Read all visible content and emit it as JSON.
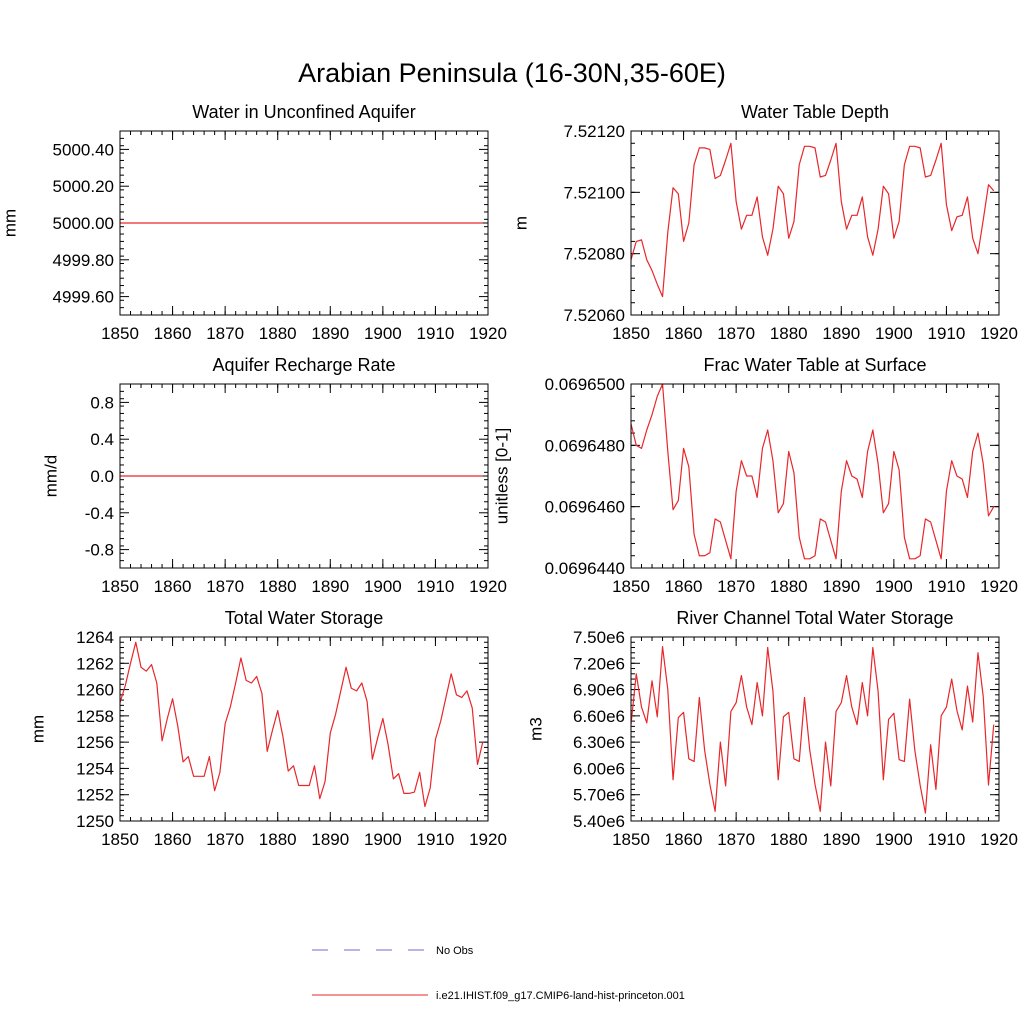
{
  "page_title": "Arabian Peninsula (16-30N,35-60E)",
  "legend": [
    {
      "label": "No Obs",
      "color": "#6b6bd6",
      "style": "dashed"
    },
    {
      "label": "i.e21.IHIST.f09_g17.CMIP6-land-hist-princeton.001",
      "color": "#e8272b",
      "style": "solid"
    }
  ],
  "chart_data": [
    {
      "type": "line",
      "title": "Water in Unconfined Aquifer",
      "ylabel": "mm",
      "xlim": [
        1850,
        1920
      ],
      "ylim": [
        4999.5,
        5000.5
      ],
      "x_ticks": [
        1850,
        1860,
        1870,
        1880,
        1890,
        1900,
        1910,
        1920
      ],
      "x_tick_labels": [
        "1850",
        "1860",
        "1870",
        "1880",
        "1890",
        "1900",
        "1910",
        "1920"
      ],
      "y_ticks": [
        4999.6,
        4999.8,
        5000.0,
        5000.2,
        5000.4
      ],
      "y_tick_labels": [
        "4999.60",
        "4999.80",
        "5000.00",
        "5000.20",
        "5000.40"
      ],
      "x": [
        1850,
        1919
      ],
      "values": [
        5000.0,
        5000.0
      ],
      "color": "#e8272b"
    },
    {
      "type": "line",
      "title": "Water Table Depth",
      "ylabel": "m",
      "xlim": [
        1850,
        1920
      ],
      "ylim": [
        7.5206,
        7.5212
      ],
      "x_ticks": [
        1850,
        1860,
        1870,
        1880,
        1890,
        1900,
        1910,
        1920
      ],
      "x_tick_labels": [
        "1850",
        "1860",
        "1870",
        "1880",
        "1890",
        "1900",
        "1910",
        "1920"
      ],
      "y_ticks": [
        7.5206,
        7.5208,
        7.521,
        7.5212
      ],
      "y_tick_labels": [
        "7.52060",
        "7.52080",
        "7.52100",
        "7.52120"
      ],
      "x_start": 1850,
      "x_step": 1,
      "values": [
        7.52078,
        7.52084,
        7.520845,
        7.52078,
        7.520745,
        7.5207,
        7.52066,
        7.52087,
        7.521015,
        7.520995,
        7.52084,
        7.5209,
        7.52109,
        7.521145,
        7.521145,
        7.52114,
        7.521045,
        7.521055,
        7.521105,
        7.52116,
        7.52097,
        7.52088,
        7.520925,
        7.520925,
        7.520985,
        7.520855,
        7.520795,
        7.52088,
        7.52102,
        7.520995,
        7.52085,
        7.520905,
        7.52109,
        7.52115,
        7.52115,
        7.521145,
        7.52105,
        7.521055,
        7.521105,
        7.52116,
        7.52097,
        7.52088,
        7.520925,
        7.520925,
        7.520985,
        7.520855,
        7.520795,
        7.52088,
        7.52102,
        7.520995,
        7.52085,
        7.520905,
        7.52109,
        7.52115,
        7.52115,
        7.521145,
        7.52105,
        7.521055,
        7.521105,
        7.52116,
        7.52096,
        7.520875,
        7.52092,
        7.520925,
        7.520985,
        7.52085,
        7.5208,
        7.52091,
        7.521025,
        7.521005
      ],
      "color": "#e8272b"
    },
    {
      "type": "line",
      "title": "Aquifer Recharge Rate",
      "ylabel": "mm/d",
      "xlim": [
        1850,
        1920
      ],
      "ylim": [
        -1.0,
        1.0
      ],
      "x_ticks": [
        1850,
        1860,
        1870,
        1880,
        1890,
        1900,
        1910,
        1920
      ],
      "x_tick_labels": [
        "1850",
        "1860",
        "1870",
        "1880",
        "1890",
        "1900",
        "1910",
        "1920"
      ],
      "y_ticks": [
        -0.8,
        -0.4,
        0.0,
        0.4,
        0.8
      ],
      "y_tick_labels": [
        "-0.8",
        "-0.4",
        "0.0",
        "0.4",
        "0.8"
      ],
      "x": [
        1850,
        1919
      ],
      "values": [
        0.0,
        0.0
      ],
      "color": "#e8272b"
    },
    {
      "type": "line",
      "title": "Frac Water Table at Surface",
      "ylabel": "unitless [0-1]",
      "xlim": [
        1850,
        1920
      ],
      "ylim": [
        0.069644,
        0.06965
      ],
      "x_ticks": [
        1850,
        1860,
        1870,
        1880,
        1890,
        1900,
        1910,
        1920
      ],
      "x_tick_labels": [
        "1850",
        "1860",
        "1870",
        "1880",
        "1890",
        "1900",
        "1910",
        "1920"
      ],
      "y_ticks": [
        0.069644,
        0.069646,
        0.069648,
        0.06965
      ],
      "y_tick_labels": [
        "0.0696440",
        "0.0696460",
        "0.0696480",
        "0.0696500"
      ],
      "x_start": 1850,
      "x_step": 1,
      "values": [
        0.0696487,
        0.069648,
        0.0696479,
        0.0696485,
        0.069649,
        0.0696496,
        0.06965,
        0.0696478,
        0.0696459,
        0.0696462,
        0.0696479,
        0.0696473,
        0.0696451,
        0.0696444,
        0.0696444,
        0.0696445,
        0.0696456,
        0.0696455,
        0.0696449,
        0.0696443,
        0.0696465,
        0.0696475,
        0.069647,
        0.069647,
        0.0696463,
        0.0696479,
        0.0696485,
        0.0696475,
        0.0696458,
        0.0696461,
        0.0696478,
        0.0696471,
        0.069645,
        0.0696443,
        0.0696443,
        0.0696444,
        0.0696456,
        0.0696455,
        0.0696449,
        0.0696443,
        0.0696465,
        0.0696475,
        0.069647,
        0.0696469,
        0.0696463,
        0.0696478,
        0.0696485,
        0.0696474,
        0.0696458,
        0.0696461,
        0.0696478,
        0.0696472,
        0.069645,
        0.0696443,
        0.0696443,
        0.0696444,
        0.0696456,
        0.0696455,
        0.0696449,
        0.0696443,
        0.0696465,
        0.0696475,
        0.069647,
        0.0696469,
        0.0696463,
        0.0696478,
        0.0696484,
        0.0696474,
        0.0696457,
        0.069646
      ],
      "color": "#e8272b"
    },
    {
      "type": "line",
      "title": "Total Water Storage",
      "ylabel": "mm",
      "xlim": [
        1850,
        1920
      ],
      "ylim": [
        1250,
        1264
      ],
      "x_ticks": [
        1850,
        1860,
        1870,
        1880,
        1890,
        1900,
        1910,
        1920
      ],
      "x_tick_labels": [
        "1850",
        "1860",
        "1870",
        "1880",
        "1890",
        "1900",
        "1910",
        "1920"
      ],
      "y_ticks": [
        1250,
        1252,
        1254,
        1256,
        1258,
        1260,
        1262,
        1264
      ],
      "y_tick_labels": [
        "1250",
        "1252",
        "1254",
        "1256",
        "1258",
        "1260",
        "1262",
        "1264"
      ],
      "x_start": 1850,
      "x_step": 1,
      "values": [
        1259.0,
        1260.3,
        1262.0,
        1263.6,
        1261.7,
        1261.4,
        1261.9,
        1260.5,
        1256.1,
        1257.8,
        1259.3,
        1257.2,
        1254.5,
        1254.9,
        1253.4,
        1253.4,
        1253.4,
        1254.9,
        1252.3,
        1253.7,
        1257.4,
        1258.7,
        1260.5,
        1262.4,
        1260.7,
        1260.5,
        1261.0,
        1259.7,
        1255.3,
        1256.9,
        1258.4,
        1256.4,
        1253.8,
        1254.2,
        1252.7,
        1252.7,
        1252.7,
        1254.2,
        1251.7,
        1253.0,
        1256.7,
        1258.1,
        1259.9,
        1261.7,
        1260.1,
        1259.9,
        1260.5,
        1259.1,
        1254.7,
        1256.3,
        1257.8,
        1255.8,
        1253.2,
        1253.6,
        1252.1,
        1252.1,
        1252.2,
        1253.7,
        1251.1,
        1252.5,
        1256.2,
        1257.6,
        1259.4,
        1261.2,
        1259.6,
        1259.4,
        1259.9,
        1258.6,
        1254.3,
        1256.0
      ],
      "color": "#e8272b"
    },
    {
      "type": "line",
      "title": "River Channel Total Water Storage",
      "ylabel": "m3",
      "xlim": [
        1850,
        1920
      ],
      "ylim": [
        5400000,
        7500000
      ],
      "x_ticks": [
        1850,
        1860,
        1870,
        1880,
        1890,
        1900,
        1910,
        1920
      ],
      "x_tick_labels": [
        "1850",
        "1860",
        "1870",
        "1880",
        "1890",
        "1900",
        "1910",
        "1920"
      ],
      "y_ticks": [
        5400000,
        5700000,
        6000000,
        6300000,
        6600000,
        6900000,
        7200000,
        7500000
      ],
      "y_tick_labels": [
        "5.40e6",
        "5.70e6",
        "6.00e6",
        "6.30e6",
        "6.60e6",
        "6.90e6",
        "7.20e6",
        "7.50e6"
      ],
      "x_start": 1850,
      "x_step": 1,
      "values": [
        6500000,
        7080000,
        6700000,
        6520000,
        7000000,
        6590000,
        7390000,
        6900000,
        5870000,
        6580000,
        6640000,
        6110000,
        6080000,
        6810000,
        6210000,
        5820000,
        5510000,
        6300000,
        5800000,
        6650000,
        6750000,
        7060000,
        6700000,
        6500000,
        6980000,
        6600000,
        7380000,
        6880000,
        5870000,
        6590000,
        6640000,
        6110000,
        6080000,
        6810000,
        6210000,
        5820000,
        5510000,
        6300000,
        5800000,
        6650000,
        6750000,
        7060000,
        6700000,
        6500000,
        6980000,
        6600000,
        7380000,
        6880000,
        5870000,
        6560000,
        6630000,
        6100000,
        6080000,
        6790000,
        6200000,
        5810000,
        5490000,
        6270000,
        5760000,
        6600000,
        6700000,
        7020000,
        6660000,
        6440000,
        6940000,
        6530000,
        7320000,
        6820000,
        5810000,
        6500000
      ],
      "color": "#e8272b"
    }
  ]
}
